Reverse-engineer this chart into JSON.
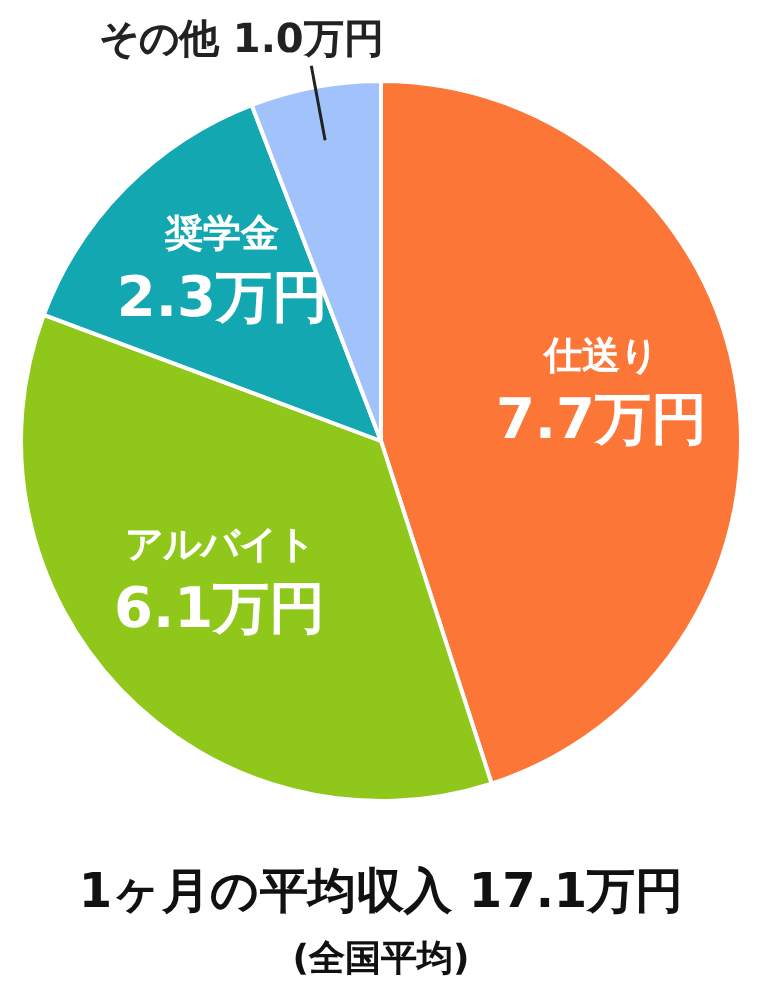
{
  "chart_data": {
    "type": "pie",
    "categories": [
      "仕送り",
      "アルバイト",
      "奨学金",
      "その他"
    ],
    "values": [
      7.7,
      6.1,
      2.3,
      1.0
    ],
    "value_labels": [
      "7.7万円",
      "6.1万円",
      "2.3万円",
      "1.0万円"
    ],
    "colors": [
      "#fb7637",
      "#8fc81a",
      "#13a7b1",
      "#a2c2fc"
    ],
    "annotations": [
      "1ヶ月の平均収入 17.1万円",
      "(全国平均)"
    ]
  }
}
